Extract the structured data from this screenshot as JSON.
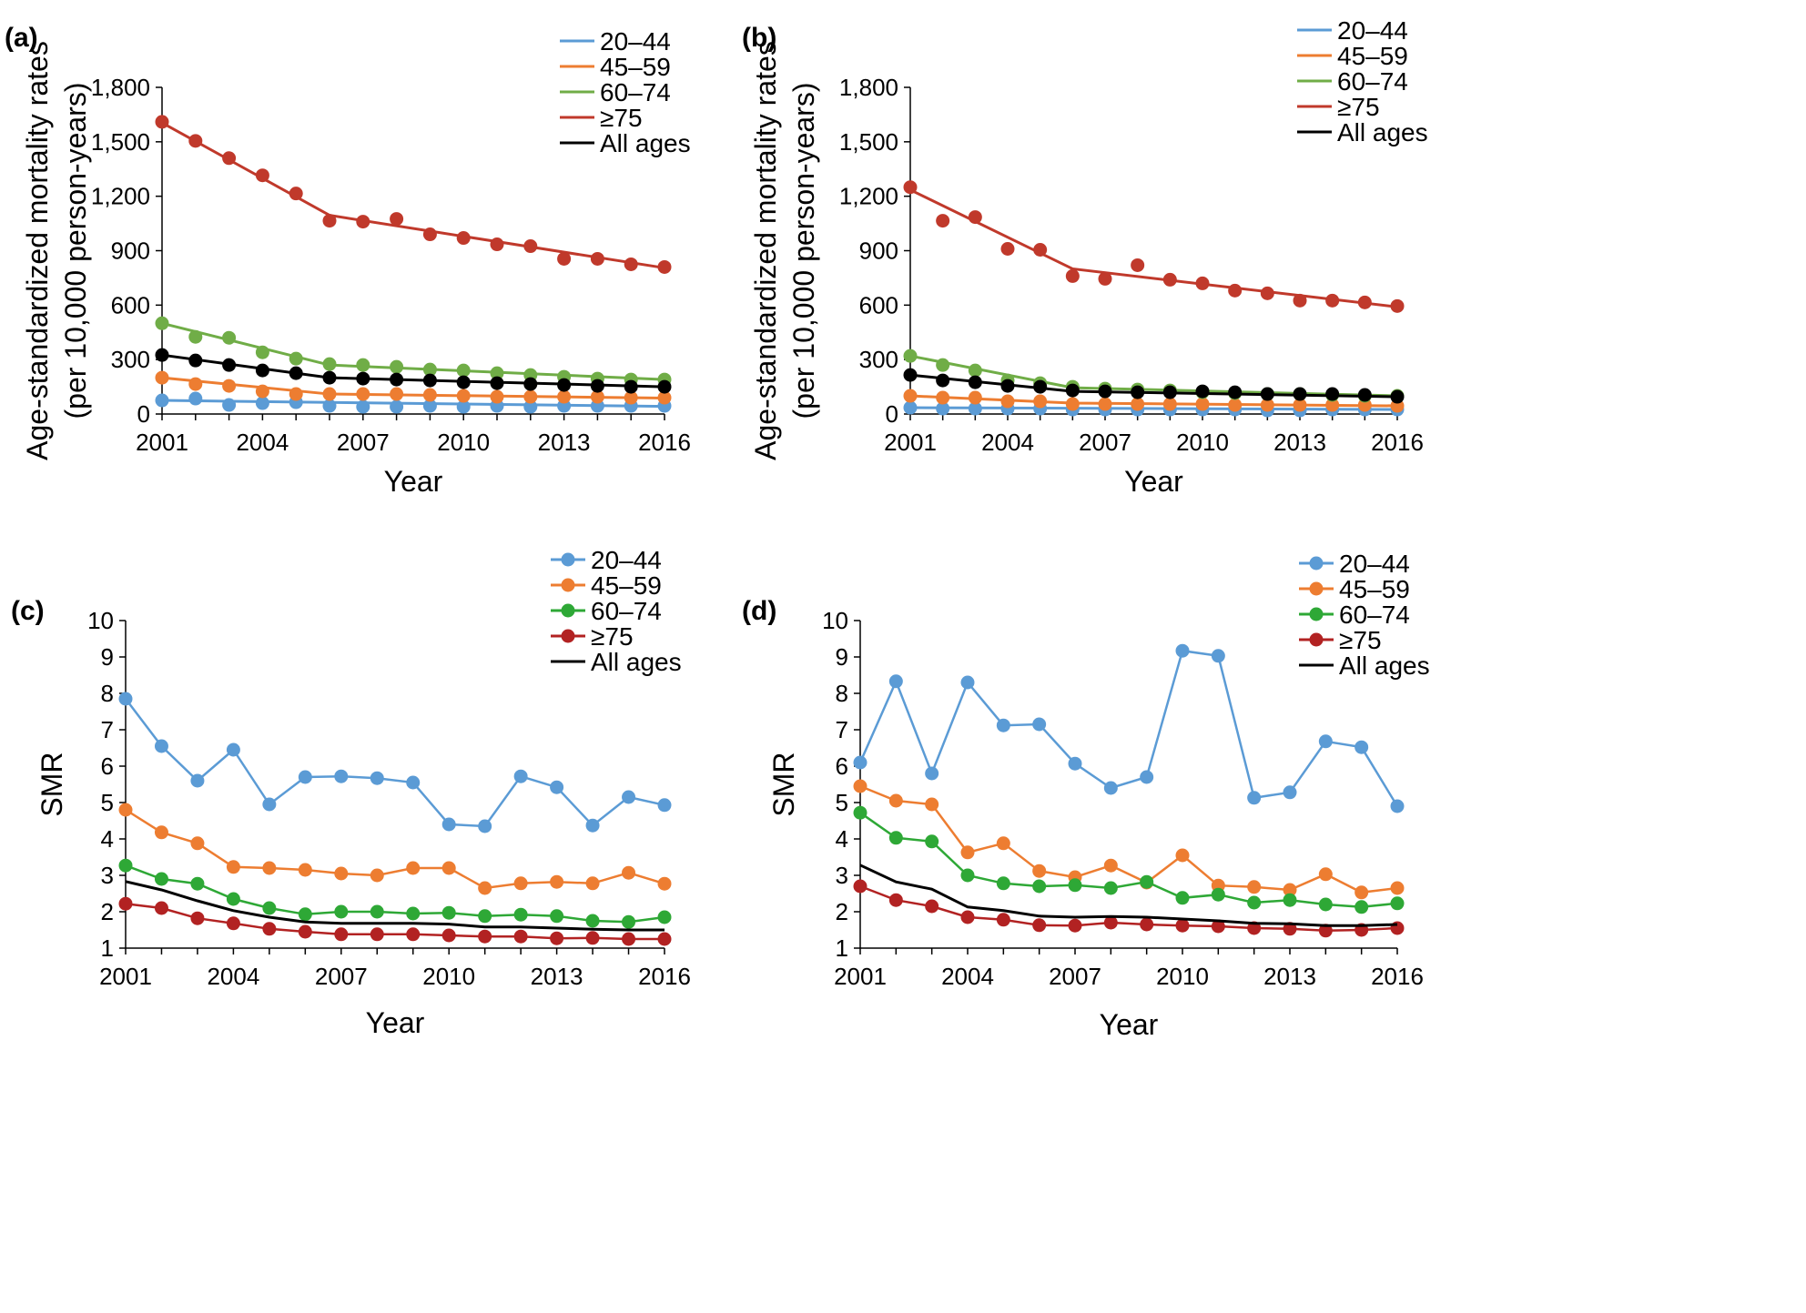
{
  "figure": {
    "panel_labels": [
      "(a)",
      "(b)",
      "(c)",
      "(d)"
    ]
  },
  "chart_data": [
    {
      "panel": "(a)",
      "type": "scatter",
      "fit_lines": true,
      "xlabel": "Year",
      "ylabel": [
        "Age-standardized mortality rates",
        "(per 10,000 person-years)"
      ],
      "xlim": [
        2001,
        2016
      ],
      "xticks": [
        2001,
        2004,
        2007,
        2010,
        2013,
        2016
      ],
      "ylim": [
        0,
        1800
      ],
      "yticks": [
        0,
        300,
        600,
        900,
        1200,
        1500,
        1800
      ],
      "ytick_labels": [
        "0",
        "300",
        "600",
        "900",
        "1,200",
        "1,500",
        "1,800"
      ],
      "legend": [
        "20–44",
        "45–59",
        "60–74",
        "≥75",
        "All ages"
      ],
      "legend_markers": false,
      "x": [
        2001,
        2002,
        2003,
        2004,
        2005,
        2006,
        2007,
        2008,
        2009,
        2010,
        2011,
        2012,
        2013,
        2014,
        2015,
        2016
      ],
      "series": [
        {
          "name": "20–44",
          "color": "#5b9bd5",
          "values": [
            75,
            85,
            50,
            60,
            65,
            45,
            40,
            40,
            45,
            40,
            45,
            40,
            45,
            45,
            45,
            45
          ],
          "fit": [
            [
              2001,
              75
            ],
            [
              2016,
              42
            ]
          ]
        },
        {
          "name": "45–59",
          "color": "#ed7d31",
          "values": [
            200,
            165,
            155,
            125,
            110,
            110,
            110,
            110,
            105,
            100,
            95,
            95,
            95,
            95,
            90,
            90
          ],
          "fit": [
            [
              2001,
              200
            ],
            [
              2006,
              110
            ],
            [
              2016,
              88
            ]
          ]
        },
        {
          "name": "60–74",
          "color": "#70ad47",
          "values": [
            500,
            425,
            420,
            340,
            305,
            275,
            270,
            260,
            245,
            240,
            225,
            215,
            205,
            195,
            190,
            190
          ],
          "fit": [
            [
              2001,
              500
            ],
            [
              2006,
              270
            ],
            [
              2016,
              190
            ]
          ]
        },
        {
          "name": "≥75",
          "color": "#c0392b",
          "values": [
            1610,
            1505,
            1410,
            1315,
            1215,
            1065,
            1060,
            1075,
            990,
            970,
            935,
            925,
            855,
            855,
            825,
            810
          ],
          "fit": [
            [
              2001,
              1605
            ],
            [
              2006,
              1095
            ],
            [
              2016,
              805
            ]
          ]
        },
        {
          "name": "All ages",
          "color": "#000000",
          "values": [
            325,
            295,
            270,
            240,
            225,
            200,
            195,
            190,
            185,
            175,
            170,
            165,
            160,
            155,
            150,
            150
          ],
          "fit": [
            [
              2001,
              325
            ],
            [
              2006,
              200
            ],
            [
              2016,
              150
            ]
          ]
        }
      ]
    },
    {
      "panel": "(b)",
      "type": "scatter",
      "fit_lines": true,
      "xlabel": "Year",
      "ylabel": [
        "Age-standardized mortality rates",
        "(per 10,000 person-years)"
      ],
      "xlim": [
        2001,
        2016
      ],
      "xticks": [
        2001,
        2004,
        2007,
        2010,
        2013,
        2016
      ],
      "ylim": [
        0,
        1800
      ],
      "yticks": [
        0,
        300,
        600,
        900,
        1200,
        1500,
        1800
      ],
      "ytick_labels": [
        "0",
        "300",
        "600",
        "900",
        "1,200",
        "1,500",
        "1,800"
      ],
      "legend": [
        "20–44",
        "45–59",
        "60–74",
        "≥75",
        "All ages"
      ],
      "legend_markers": false,
      "x": [
        2001,
        2002,
        2003,
        2004,
        2005,
        2006,
        2007,
        2008,
        2009,
        2010,
        2011,
        2012,
        2013,
        2014,
        2015,
        2016
      ],
      "series": [
        {
          "name": "20–44",
          "color": "#5b9bd5",
          "values": [
            35,
            30,
            30,
            30,
            30,
            25,
            25,
            25,
            25,
            25,
            25,
            20,
            20,
            25,
            25,
            25
          ],
          "fit": [
            [
              2001,
              35
            ],
            [
              2016,
              25
            ]
          ]
        },
        {
          "name": "45–59",
          "color": "#ed7d31",
          "values": [
            100,
            90,
            90,
            70,
            70,
            55,
            55,
            55,
            55,
            55,
            50,
            50,
            50,
            50,
            50,
            45
          ],
          "fit": [
            [
              2001,
              100
            ],
            [
              2006,
              60
            ],
            [
              2016,
              45
            ]
          ]
        },
        {
          "name": "60–74",
          "color": "#70ad47",
          "values": [
            320,
            270,
            240,
            185,
            170,
            150,
            140,
            135,
            130,
            120,
            115,
            110,
            110,
            105,
            100,
            100
          ],
          "fit": [
            [
              2001,
              320
            ],
            [
              2006,
              145
            ],
            [
              2016,
              100
            ]
          ]
        },
        {
          "name": "≥75",
          "color": "#c0392b",
          "values": [
            1250,
            1065,
            1085,
            910,
            905,
            760,
            745,
            820,
            740,
            720,
            680,
            665,
            625,
            625,
            615,
            595
          ],
          "fit": [
            [
              2001,
              1235
            ],
            [
              2006,
              800
            ],
            [
              2016,
              590
            ]
          ]
        },
        {
          "name": "All ages",
          "color": "#000000",
          "values": [
            215,
            185,
            175,
            155,
            150,
            130,
            125,
            120,
            120,
            125,
            120,
            110,
            110,
            110,
            105,
            95
          ],
          "fit": [
            [
              2001,
              215
            ],
            [
              2006,
              125
            ],
            [
              2016,
              95
            ]
          ]
        }
      ]
    },
    {
      "panel": "(c)",
      "type": "line",
      "xlabel": "Year",
      "ylabel": "SMR",
      "xlim": [
        2001,
        2016
      ],
      "xticks": [
        2001,
        2004,
        2007,
        2010,
        2013,
        2016
      ],
      "ylim": [
        1,
        10
      ],
      "yticks": [
        1,
        2,
        3,
        4,
        5,
        6,
        7,
        8,
        9,
        10
      ],
      "legend": [
        "20–44",
        "45–59",
        "60–74",
        "≥75",
        "All ages"
      ],
      "legend_markers": true,
      "x": [
        2001,
        2002,
        2003,
        2004,
        2005,
        2006,
        2007,
        2008,
        2009,
        2010,
        2011,
        2012,
        2013,
        2014,
        2015,
        2016
      ],
      "series": [
        {
          "name": "20–44",
          "color": "#5b9bd5",
          "markers": true,
          "values": [
            7.85,
            6.55,
            5.6,
            6.45,
            4.95,
            5.7,
            5.72,
            5.67,
            5.55,
            4.4,
            4.35,
            5.72,
            5.42,
            4.37,
            5.15,
            4.93
          ]
        },
        {
          "name": "45–59",
          "color": "#ed7d31",
          "markers": true,
          "values": [
            4.8,
            4.18,
            3.88,
            3.23,
            3.2,
            3.15,
            3.05,
            3.0,
            3.2,
            3.2,
            2.65,
            2.78,
            2.82,
            2.78,
            3.07,
            2.77
          ]
        },
        {
          "name": "60–74",
          "color": "#2ea836",
          "markers": true,
          "values": [
            3.27,
            2.9,
            2.77,
            2.35,
            2.1,
            1.93,
            2.0,
            2.0,
            1.95,
            1.97,
            1.88,
            1.92,
            1.88,
            1.75,
            1.72,
            1.85
          ]
        },
        {
          "name": "≥75",
          "color": "#b22222",
          "markers": true,
          "values": [
            2.22,
            2.1,
            1.82,
            1.68,
            1.53,
            1.45,
            1.38,
            1.38,
            1.38,
            1.35,
            1.32,
            1.32,
            1.27,
            1.28,
            1.25,
            1.25
          ]
        },
        {
          "name": "All ages",
          "color": "#000000",
          "markers": false,
          "values": [
            2.83,
            2.6,
            2.3,
            2.03,
            1.85,
            1.72,
            1.68,
            1.68,
            1.68,
            1.66,
            1.58,
            1.58,
            1.55,
            1.52,
            1.5,
            1.5
          ]
        }
      ]
    },
    {
      "panel": "(d)",
      "type": "line",
      "xlabel": "Year",
      "ylabel": "SMR",
      "xlim": [
        2001,
        2016
      ],
      "xticks": [
        2001,
        2004,
        2007,
        2010,
        2013,
        2016
      ],
      "ylim": [
        1,
        10
      ],
      "yticks": [
        1,
        2,
        3,
        4,
        5,
        6,
        7,
        8,
        9,
        10
      ],
      "legend": [
        "20–44",
        "45–59",
        "60–74",
        "≥75",
        "All ages"
      ],
      "legend_markers": true,
      "x": [
        2001,
        2002,
        2003,
        2004,
        2005,
        2006,
        2007,
        2008,
        2009,
        2010,
        2011,
        2012,
        2013,
        2014,
        2015,
        2016
      ],
      "series": [
        {
          "name": "20–44",
          "color": "#5b9bd5",
          "markers": true,
          "values": [
            6.1,
            8.33,
            5.8,
            8.3,
            7.12,
            7.15,
            6.07,
            5.4,
            5.7,
            9.17,
            9.03,
            5.13,
            5.28,
            6.68,
            6.52,
            4.9
          ]
        },
        {
          "name": "45–59",
          "color": "#ed7d31",
          "markers": true,
          "values": [
            5.45,
            5.05,
            4.95,
            3.63,
            3.88,
            3.12,
            2.95,
            3.27,
            2.8,
            3.55,
            2.72,
            2.68,
            2.6,
            3.03,
            2.53,
            2.65
          ]
        },
        {
          "name": "60–74",
          "color": "#2ea836",
          "markers": true,
          "values": [
            4.72,
            4.03,
            3.93,
            3.0,
            2.78,
            2.7,
            2.73,
            2.65,
            2.82,
            2.38,
            2.47,
            2.25,
            2.32,
            2.2,
            2.13,
            2.23
          ]
        },
        {
          "name": "≥75",
          "color": "#b22222",
          "markers": true,
          "values": [
            2.7,
            2.32,
            2.15,
            1.85,
            1.78,
            1.63,
            1.62,
            1.7,
            1.65,
            1.62,
            1.6,
            1.55,
            1.53,
            1.48,
            1.5,
            1.55
          ]
        },
        {
          "name": "All ages",
          "color": "#000000",
          "markers": false,
          "values": [
            3.28,
            2.82,
            2.62,
            2.13,
            2.03,
            1.88,
            1.85,
            1.87,
            1.85,
            1.8,
            1.75,
            1.68,
            1.67,
            1.62,
            1.62,
            1.65
          ]
        }
      ]
    }
  ]
}
